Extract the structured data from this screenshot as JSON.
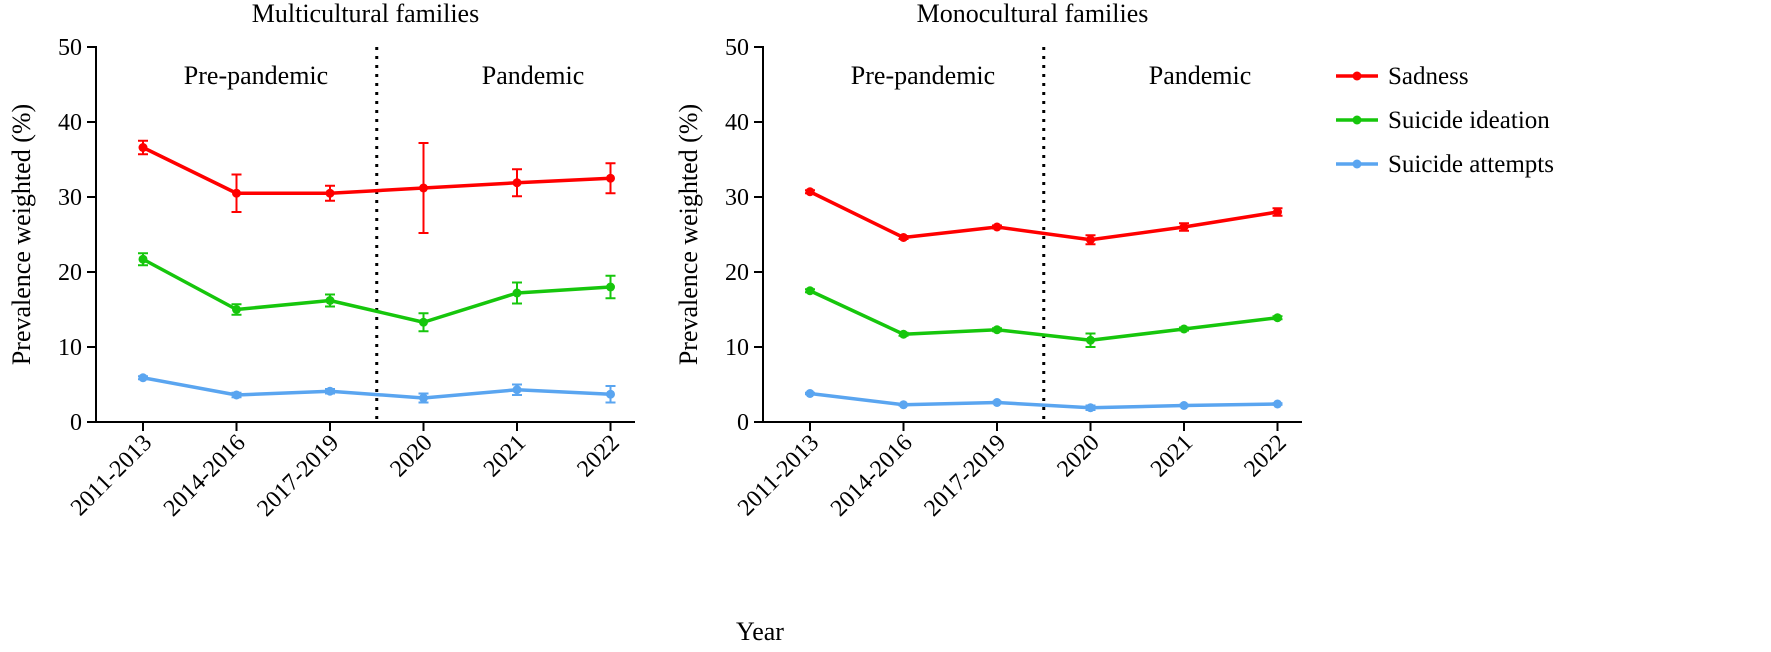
{
  "chart_data": {
    "type": "line",
    "x_axis_label": "Year",
    "categories": [
      "2011-2013",
      "2014-2016",
      "2017-2019",
      "2020",
      "2021",
      "2022"
    ],
    "legend": {
      "position": "right",
      "entries": [
        "Sadness",
        "Suicide ideation",
        "Suicide attempts"
      ]
    },
    "colors": {
      "Sadness": "#ff0000",
      "Suicide ideation": "#16c60c",
      "Suicide attempts": "#5aa5f0"
    },
    "panels": [
      {
        "title": "Multicultural families",
        "ylabel": "Prevalence weighted (%)",
        "ylim": [
          0,
          50
        ],
        "yticks": [
          "0",
          "10",
          "20",
          "30",
          "40",
          "50"
        ],
        "period_labels": [
          "Pre-pandemic",
          "Pandemic"
        ],
        "divider_between": [
          "2017-2019",
          "2020"
        ],
        "series": [
          {
            "name": "Sadness",
            "values": [
              36.6,
              30.5,
              30.5,
              31.2,
              31.9,
              32.5
            ],
            "err": [
              0.9,
              2.5,
              1.0,
              6.0,
              1.8,
              2.0
            ]
          },
          {
            "name": "Suicide ideation",
            "values": [
              21.7,
              15.0,
              16.2,
              13.3,
              17.2,
              18.0
            ],
            "err": [
              0.8,
              0.7,
              0.8,
              1.2,
              1.4,
              1.5
            ]
          },
          {
            "name": "Suicide attempts",
            "values": [
              5.9,
              3.6,
              4.1,
              3.2,
              4.3,
              3.7
            ],
            "err": [
              0.2,
              0.3,
              0.3,
              0.6,
              0.7,
              1.1
            ]
          }
        ]
      },
      {
        "title": "Monocultural families",
        "ylabel": "Prevalence weighted (%)",
        "ylim": [
          0,
          50
        ],
        "yticks": [
          "0",
          "10",
          "20",
          "30",
          "40",
          "50"
        ],
        "period_labels": [
          "Pre-pandemic",
          "Pandemic"
        ],
        "divider_between": [
          "2017-2019",
          "2020"
        ],
        "series": [
          {
            "name": "Sadness",
            "values": [
              30.7,
              24.6,
              26.0,
              24.3,
              26.0,
              28.0
            ],
            "err": [
              0.2,
              0.2,
              0.2,
              0.6,
              0.5,
              0.5
            ]
          },
          {
            "name": "Suicide ideation",
            "values": [
              17.5,
              11.7,
              12.3,
              10.9,
              12.4,
              13.9
            ],
            "err": [
              0.2,
              0.2,
              0.2,
              0.9,
              0.2,
              0.2
            ]
          },
          {
            "name": "Suicide attempts",
            "values": [
              3.8,
              2.3,
              2.6,
              1.9,
              2.2,
              2.4
            ],
            "err": [
              0.1,
              0.1,
              0.1,
              0.3,
              0.1,
              0.1
            ]
          }
        ]
      }
    ]
  }
}
